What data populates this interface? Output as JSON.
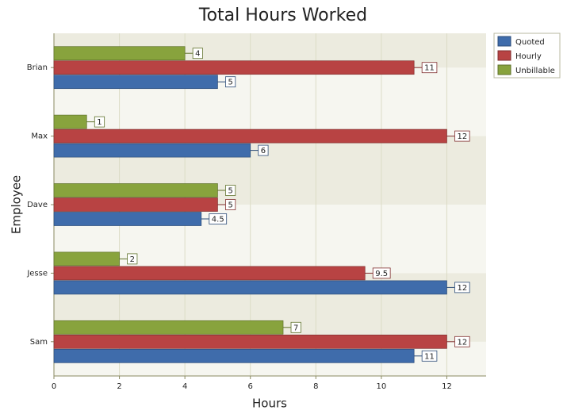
{
  "chart_data": {
    "type": "hbar",
    "title": "Total Hours Worked",
    "x_label": "Hours",
    "y_label": "Employee",
    "categories": [
      "Sam",
      "Jesse",
      "Dave",
      "Max",
      "Brian"
    ],
    "series": [
      {
        "name": "Quoted",
        "color": "#3f6cab",
        "values": [
          11,
          12,
          4.5,
          6,
          5
        ]
      },
      {
        "name": "Hourly",
        "color": "#b84343",
        "values": [
          12,
          9.5,
          5,
          12,
          11
        ]
      },
      {
        "name": "Unbillable",
        "color": "#88a33d",
        "values": [
          7,
          2,
          5,
          1,
          4
        ]
      }
    ],
    "xlim": [
      0,
      13.2
    ],
    "xticks": [
      0,
      2,
      4,
      6,
      8,
      10,
      12
    ],
    "grid": true,
    "legend": "top-right"
  }
}
